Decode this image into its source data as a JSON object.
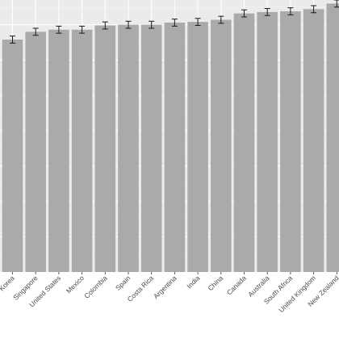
{
  "chart_data": {
    "type": "bar",
    "categories": [
      "Korea",
      "Singapore",
      "United States",
      "Mexico",
      "Colombia",
      "Spain",
      "Costa Rica",
      "Argentina",
      "India",
      "China",
      "Canada",
      "Australia",
      "South Africa",
      "United Kingdom",
      "New Zealand"
    ],
    "values": [
      3.29,
      3.4,
      3.43,
      3.43,
      3.49,
      3.5,
      3.5,
      3.53,
      3.54,
      3.57,
      3.66,
      3.68,
      3.69,
      3.72,
      3.8
    ],
    "errors": [
      0.05,
      0.05,
      0.05,
      0.05,
      0.05,
      0.05,
      0.05,
      0.05,
      0.05,
      0.05,
      0.05,
      0.05,
      0.05,
      0.05,
      0.05
    ],
    "ylim": [
      0,
      3.85
    ],
    "grid": true,
    "colors": {
      "panel": "#ebebeb",
      "bar": "#aaaaaa",
      "grid_major": "#ffffff",
      "grid_minor": "#f5f5f5",
      "error_bar": "#1a1a1a",
      "tick_label": "#4d4d4d"
    }
  }
}
